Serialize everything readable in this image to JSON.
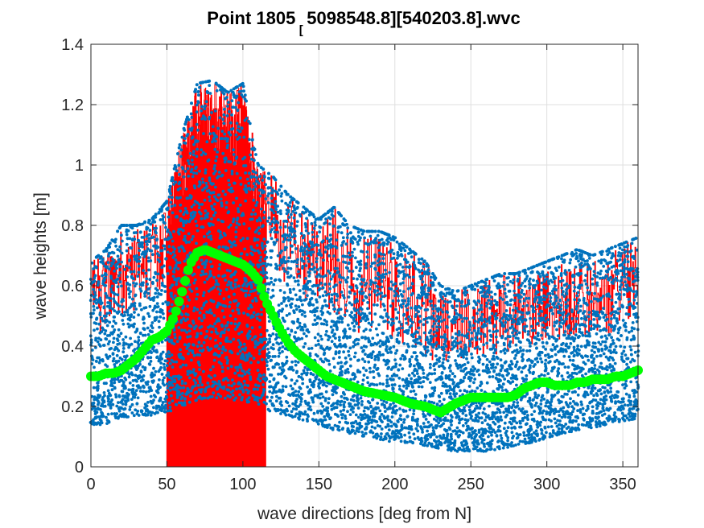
{
  "chart_data": {
    "type": "scatter",
    "title": "Point 1805",
    "title_subscript": "[",
    "title_rest": "5098548.8][540203.8].wvc",
    "xlabel": "wave directions [deg from N]",
    "ylabel": "wave heights [m]",
    "xlim": [
      0,
      360
    ],
    "ylim": [
      0,
      1.4
    ],
    "xticks": [
      0,
      50,
      100,
      150,
      200,
      250,
      300,
      350
    ],
    "yticks": [
      0,
      0.2,
      0.4,
      0.6,
      0.8,
      1,
      1.2,
      1.4
    ],
    "ytick_labels": [
      "0",
      "0.2",
      "0.4",
      "0.6",
      "0.8",
      "1",
      "1.2",
      "1.4"
    ],
    "grid": true,
    "colors": {
      "scatter": "#0072BD",
      "stairs": "#FF0000",
      "mean": "#00FF00",
      "grid": "#DFDFDF",
      "axis": "#262626"
    },
    "series": [
      {
        "kind": "scatter-envelope",
        "x": [
          0,
          10,
          20,
          30,
          40,
          50,
          60,
          70,
          80,
          90,
          100,
          110,
          120,
          130,
          140,
          150,
          160,
          170,
          180,
          190,
          200,
          210,
          220,
          230,
          240,
          250,
          260,
          270,
          280,
          290,
          300,
          310,
          320,
          330,
          340,
          350,
          360
        ],
        "y_max": [
          0.68,
          0.72,
          0.8,
          0.8,
          0.82,
          0.88,
          1.1,
          1.27,
          1.28,
          1.24,
          1.27,
          1.0,
          0.96,
          0.9,
          0.86,
          0.82,
          0.86,
          0.8,
          0.78,
          0.78,
          0.76,
          0.72,
          0.68,
          0.6,
          0.58,
          0.6,
          0.62,
          0.64,
          0.64,
          0.66,
          0.68,
          0.7,
          0.72,
          0.7,
          0.72,
          0.74,
          0.76
        ],
        "y_min": [
          0.14,
          0.14,
          0.16,
          0.17,
          0.17,
          0.18,
          0.2,
          0.22,
          0.23,
          0.22,
          0.22,
          0.2,
          0.18,
          0.17,
          0.15,
          0.14,
          0.12,
          0.11,
          0.1,
          0.09,
          0.08,
          0.08,
          0.07,
          0.06,
          0.05,
          0.05,
          0.05,
          0.06,
          0.07,
          0.08,
          0.09,
          0.11,
          0.12,
          0.13,
          0.14,
          0.15,
          0.16
        ]
      },
      {
        "kind": "mean",
        "x": [
          0,
          5,
          10,
          15,
          20,
          25,
          30,
          35,
          40,
          45,
          50,
          55,
          60,
          65,
          70,
          75,
          80,
          85,
          90,
          95,
          100,
          105,
          110,
          115,
          120,
          125,
          130,
          135,
          140,
          145,
          150,
          155,
          160,
          165,
          170,
          175,
          180,
          190,
          200,
          210,
          220,
          230,
          240,
          245,
          250,
          255,
          260,
          265,
          270,
          275,
          280,
          285,
          290,
          295,
          300,
          305,
          310,
          315,
          320,
          325,
          330,
          335,
          340,
          345,
          350,
          355,
          360
        ],
        "y": [
          0.3,
          0.3,
          0.31,
          0.31,
          0.32,
          0.34,
          0.36,
          0.39,
          0.42,
          0.43,
          0.45,
          0.5,
          0.58,
          0.67,
          0.71,
          0.72,
          0.71,
          0.7,
          0.69,
          0.68,
          0.67,
          0.65,
          0.62,
          0.55,
          0.5,
          0.45,
          0.41,
          0.38,
          0.36,
          0.34,
          0.32,
          0.3,
          0.29,
          0.28,
          0.27,
          0.26,
          0.25,
          0.24,
          0.23,
          0.21,
          0.2,
          0.18,
          0.21,
          0.22,
          0.23,
          0.23,
          0.23,
          0.23,
          0.23,
          0.23,
          0.24,
          0.26,
          0.27,
          0.28,
          0.28,
          0.27,
          0.27,
          0.27,
          0.28,
          0.28,
          0.29,
          0.29,
          0.29,
          0.3,
          0.3,
          0.31,
          0.32
        ]
      }
    ]
  }
}
